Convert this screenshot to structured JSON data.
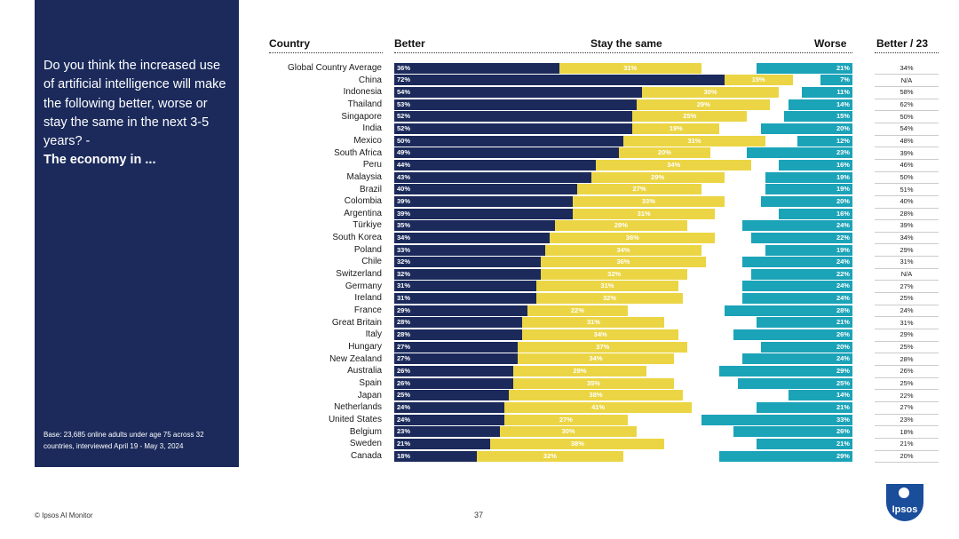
{
  "panel": {
    "question": "Do you think the increased use of artificial intelligence will make the following better, worse or stay the same in the next 3-5 years? -",
    "question_bold": "The economy in ...",
    "base": "Base: 23,685 online adults under age 75 across 32 countries, interviewed April 19 - May 3, 2024"
  },
  "headers": {
    "country": "Country",
    "better": "Better",
    "same": "Stay the same",
    "worse": "Worse",
    "better23": "Better / 23"
  },
  "footer": {
    "source": "© Ipsos AI Monitor",
    "page": "37",
    "logo": "Ipsos"
  },
  "colors": {
    "better": "#1b2a5b",
    "same": "#ebd544",
    "worse": "#1ba3b8"
  },
  "chart_data": {
    "type": "bar",
    "orientation": "horizontal",
    "stacked": true,
    "unit": "%",
    "categories": [
      "Global Country Average",
      "China",
      "Indonesia",
      "Thailand",
      "Singapore",
      "India",
      "Mexico",
      "South Africa",
      "Peru",
      "Malaysia",
      "Brazil",
      "Colombia",
      "Argentina",
      "Türkiye",
      "South Korea",
      "Poland",
      "Chile",
      "Switzerland",
      "Germany",
      "Ireland",
      "France",
      "Great Britain",
      "Italy",
      "Hungary",
      "New Zealand",
      "Australia",
      "Spain",
      "Japan",
      "Netherlands",
      "United States",
      "Belgium",
      "Sweden",
      "Canada"
    ],
    "series": [
      {
        "name": "Better",
        "values": [
          36,
          72,
          54,
          53,
          52,
          52,
          50,
          49,
          44,
          43,
          40,
          39,
          39,
          35,
          34,
          33,
          32,
          32,
          31,
          31,
          29,
          28,
          28,
          27,
          27,
          26,
          26,
          25,
          24,
          24,
          23,
          21,
          18
        ]
      },
      {
        "name": "Stay the same",
        "values": [
          31,
          15,
          30,
          29,
          25,
          19,
          31,
          20,
          34,
          29,
          27,
          33,
          31,
          29,
          36,
          34,
          36,
          32,
          31,
          32,
          22,
          31,
          34,
          37,
          34,
          29,
          35,
          38,
          41,
          27,
          30,
          38,
          32
        ]
      },
      {
        "name": "Worse",
        "values": [
          21,
          7,
          11,
          14,
          15,
          20,
          12,
          23,
          16,
          19,
          19,
          20,
          16,
          24,
          22,
          19,
          24,
          22,
          24,
          24,
          28,
          21,
          26,
          20,
          24,
          29,
          25,
          14,
          21,
          33,
          26,
          21,
          29
        ]
      }
    ],
    "labels": {
      "better": [
        "36%",
        "72%",
        "54%",
        "53%",
        "52%",
        "52%",
        "50%",
        "49%",
        "44%",
        "43%",
        "40%",
        "39%",
        "39%",
        "35%",
        "34%",
        "33%",
        "32%",
        "32%",
        "31%",
        "31%",
        "29%",
        "28%",
        "28%",
        "27%",
        "27%",
        "26%",
        "26%",
        "25%",
        "24%",
        "24%",
        "23%",
        "21%",
        "18%"
      ],
      "same": [
        "31%",
        "15%",
        "30%",
        "29%",
        "25%",
        "19%",
        "31%",
        "20%",
        "34%",
        "29%",
        "27%",
        "33%",
        "31%",
        "29%",
        "36%",
        "34%",
        "36%",
        "32%",
        "31%",
        "32%",
        "22%",
        "31%",
        "34%",
        "37%",
        "34%",
        "29%",
        "35%",
        "38%",
        "41%",
        "27%",
        "30%",
        "38%",
        "32%"
      ],
      "worse": [
        "21%",
        "7%",
        "11%",
        "14%",
        "15%",
        "20%",
        "12%",
        "23%",
        "16%",
        "19%",
        "19%",
        "20%",
        "16%",
        "24%",
        "22%",
        "19%",
        "24%",
        "22%",
        "24%",
        "24%",
        "28%",
        "21%",
        "26%",
        "20%",
        "24%",
        "29%",
        "25%",
        "14%",
        "21%",
        "33%",
        "26%",
        "21%",
        "29%"
      ]
    },
    "better23": [
      "34%",
      "N/A",
      "58%",
      "62%",
      "50%",
      "54%",
      "48%",
      "39%",
      "46%",
      "50%",
      "51%",
      "40%",
      "28%",
      "39%",
      "34%",
      "29%",
      "31%",
      "N/A",
      "27%",
      "25%",
      "24%",
      "31%",
      "29%",
      "25%",
      "28%",
      "26%",
      "25%",
      "22%",
      "27%",
      "23%",
      "18%",
      "21%",
      "20%"
    ]
  }
}
